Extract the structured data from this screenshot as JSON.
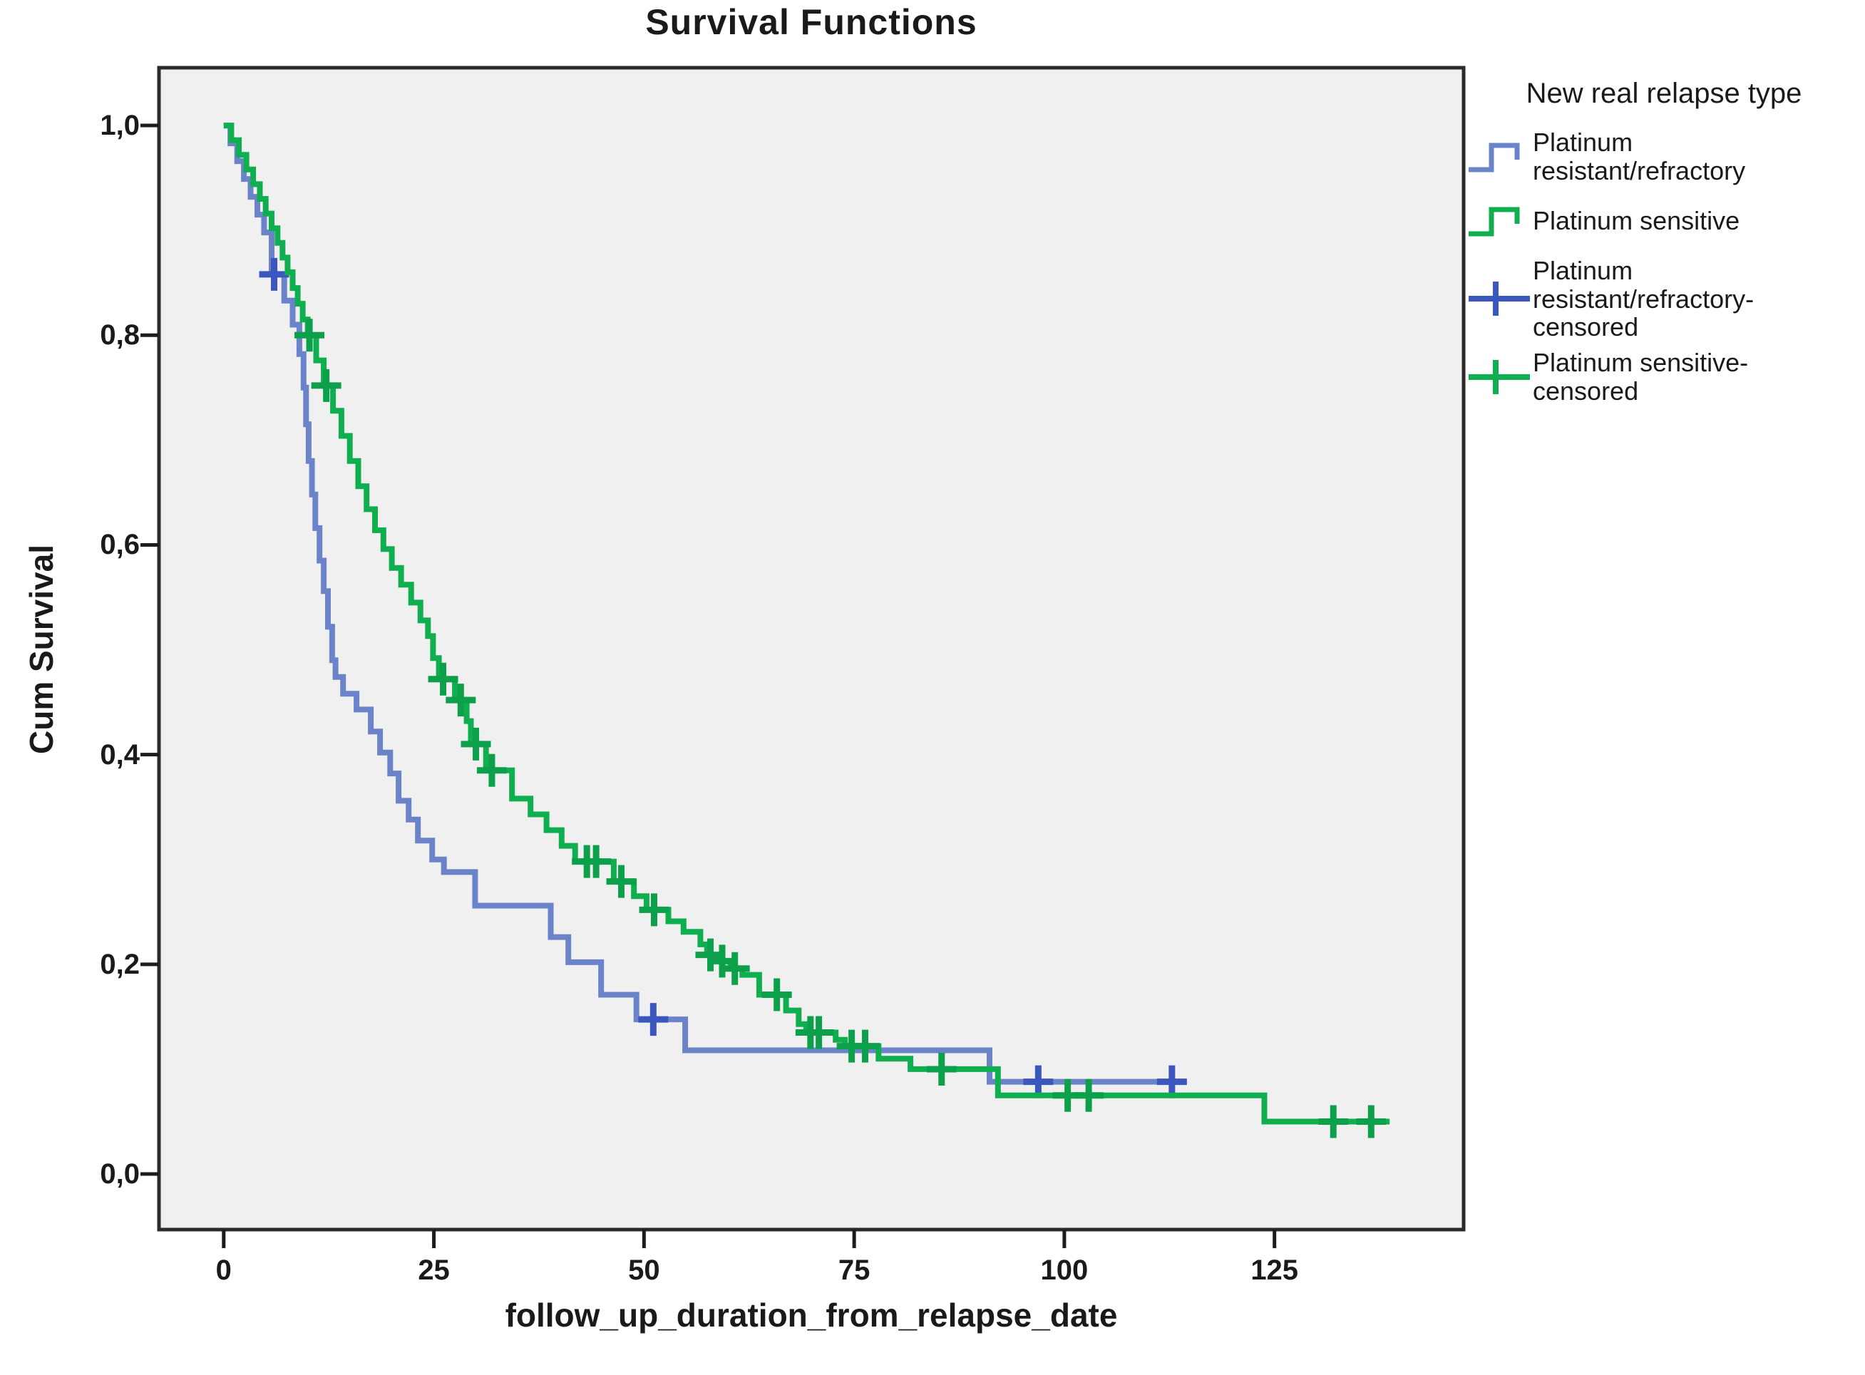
{
  "title": "Survival Functions",
  "x_axis": {
    "label": "follow_up_duration_from_relapse_date",
    "tick_labels": [
      "0",
      "25",
      "50",
      "75",
      "100",
      "125"
    ],
    "tick_values": [
      0,
      25,
      50,
      75,
      100,
      125
    ]
  },
  "y_axis": {
    "label": "Cum Survival",
    "tick_labels": [
      "0,0",
      "0,2",
      "0,4",
      "0,6",
      "0,8",
      "1,0"
    ],
    "tick_values": [
      0,
      0.2,
      0.4,
      0.6,
      0.8,
      1.0
    ]
  },
  "legend": {
    "title": "New real relapse type",
    "items": [
      {
        "label": "Platinum resistant/refractory",
        "swatch": "step",
        "color": "#6b84c9"
      },
      {
        "label": "Platinum sensitive",
        "swatch": "step",
        "color": "#0fae4e"
      },
      {
        "label": "Platinum resistant/refractory-censored",
        "swatch": "censor",
        "color": "#3a57be"
      },
      {
        "label": "Platinum sensitive-censored",
        "swatch": "censor",
        "color": "#0fae4e"
      }
    ]
  },
  "colors": {
    "plot_background": "#f0f0f0",
    "frame": "#2b2b2b",
    "tick": "#1c1c1c"
  },
  "chart_data": {
    "type": "line",
    "subtype": "kaplan_meier_step",
    "title": "Survival Functions",
    "xlabel": "follow_up_duration_from_relapse_date",
    "ylabel": "Cum Survival",
    "x_range": [
      -7.7,
      147.5
    ],
    "y_range": [
      -0.053,
      1.0551
    ],
    "x_ticks": [
      0,
      25,
      50,
      75,
      100,
      125
    ],
    "y_ticks": [
      0,
      0.2,
      0.4,
      0.6,
      0.8,
      1.0
    ],
    "grid": false,
    "legend_position": "top-right",
    "series": [
      {
        "name": "Platinum resistant/refractory",
        "color": "#6b84c9",
        "censor_color": "#3a57be",
        "end_x": 113.5,
        "points": [
          [
            0,
            1.0
          ],
          [
            0.8,
            0.983
          ],
          [
            1.6,
            0.966
          ],
          [
            2.4,
            0.949
          ],
          [
            3.2,
            0.932
          ],
          [
            4.0,
            0.915
          ],
          [
            4.8,
            0.898
          ],
          [
            5.7,
            0.858
          ],
          [
            7.2,
            0.833
          ],
          [
            8.2,
            0.81
          ],
          [
            9.0,
            0.782
          ],
          [
            9.5,
            0.75
          ],
          [
            9.8,
            0.715
          ],
          [
            10.1,
            0.68
          ],
          [
            10.5,
            0.648
          ],
          [
            10.9,
            0.616
          ],
          [
            11.4,
            0.585
          ],
          [
            11.9,
            0.556
          ],
          [
            12.4,
            0.522
          ],
          [
            12.9,
            0.49
          ],
          [
            13.3,
            0.474
          ],
          [
            14.2,
            0.458
          ],
          [
            15.8,
            0.443
          ],
          [
            17.5,
            0.422
          ],
          [
            18.6,
            0.402
          ],
          [
            19.8,
            0.382
          ],
          [
            20.8,
            0.356
          ],
          [
            22.0,
            0.338
          ],
          [
            23.1,
            0.318
          ],
          [
            24.8,
            0.3
          ],
          [
            26.2,
            0.288
          ],
          [
            29.9,
            0.256
          ],
          [
            38.9,
            0.226
          ],
          [
            41.0,
            0.202
          ],
          [
            44.9,
            0.171
          ],
          [
            49.1,
            0.1475
          ],
          [
            54.9,
            0.118
          ],
          [
            91.1,
            0.088
          ]
        ],
        "censored": [
          [
            6.0,
            0.858
          ],
          [
            51.1,
            0.1475
          ],
          [
            96.9,
            0.088
          ],
          [
            112.8,
            0.088
          ]
        ]
      },
      {
        "name": "Platinum sensitive",
        "color": "#0fae4e",
        "censor_color": "#0da04a",
        "end_x": 138.7,
        "points": [
          [
            0,
            1.0
          ],
          [
            0.9,
            0.986
          ],
          [
            1.8,
            0.972
          ],
          [
            2.7,
            0.958
          ],
          [
            3.5,
            0.944
          ],
          [
            4.3,
            0.93
          ],
          [
            5.0,
            0.916
          ],
          [
            5.7,
            0.902
          ],
          [
            6.4,
            0.888
          ],
          [
            7.0,
            0.874
          ],
          [
            7.6,
            0.86
          ],
          [
            8.2,
            0.845
          ],
          [
            8.8,
            0.83
          ],
          [
            9.4,
            0.815
          ],
          [
            10.0,
            0.8
          ],
          [
            11.0,
            0.776
          ],
          [
            11.9,
            0.752
          ],
          [
            13.0,
            0.728
          ],
          [
            14.0,
            0.704
          ],
          [
            15.0,
            0.68
          ],
          [
            16.0,
            0.656
          ],
          [
            17.0,
            0.634
          ],
          [
            18.0,
            0.614
          ],
          [
            19.0,
            0.596
          ],
          [
            20.0,
            0.578
          ],
          [
            21.1,
            0.562
          ],
          [
            22.3,
            0.545
          ],
          [
            23.4,
            0.528
          ],
          [
            24.3,
            0.513
          ],
          [
            24.9,
            0.492
          ],
          [
            25.6,
            0.472
          ],
          [
            27.5,
            0.452
          ],
          [
            28.9,
            0.432
          ],
          [
            29.4,
            0.41
          ],
          [
            31.2,
            0.385
          ],
          [
            34.3,
            0.358
          ],
          [
            36.5,
            0.343
          ],
          [
            38.4,
            0.328
          ],
          [
            40.2,
            0.313
          ],
          [
            41.8,
            0.298
          ],
          [
            46.4,
            0.279
          ],
          [
            48.8,
            0.265
          ],
          [
            50.3,
            0.252
          ],
          [
            52.9,
            0.241
          ],
          [
            54.7,
            0.231
          ],
          [
            56.7,
            0.219
          ],
          [
            57.5,
            0.209
          ],
          [
            58.9,
            0.203
          ],
          [
            60.3,
            0.196
          ],
          [
            61.7,
            0.19
          ],
          [
            63.7,
            0.171
          ],
          [
            66.9,
            0.156
          ],
          [
            68.4,
            0.143
          ],
          [
            69.3,
            0.135
          ],
          [
            72.8,
            0.128
          ],
          [
            73.9,
            0.122
          ],
          [
            77.9,
            0.11
          ],
          [
            81.7,
            0.1
          ],
          [
            92.1,
            0.075
          ],
          [
            123.8,
            0.05
          ]
        ],
        "censored": [
          [
            10.2,
            0.8
          ],
          [
            12.2,
            0.752
          ],
          [
            26.1,
            0.472
          ],
          [
            28.2,
            0.452
          ],
          [
            30.0,
            0.41
          ],
          [
            31.9,
            0.385
          ],
          [
            43.2,
            0.298
          ],
          [
            44.3,
            0.298
          ],
          [
            47.3,
            0.279
          ],
          [
            51.2,
            0.252
          ],
          [
            57.9,
            0.209
          ],
          [
            59.3,
            0.203
          ],
          [
            60.8,
            0.196
          ],
          [
            65.8,
            0.171
          ],
          [
            69.8,
            0.135
          ],
          [
            70.8,
            0.135
          ],
          [
            74.7,
            0.122
          ],
          [
            76.3,
            0.122
          ],
          [
            85.4,
            0.1
          ],
          [
            100.4,
            0.075
          ],
          [
            102.9,
            0.075
          ],
          [
            132.0,
            0.05
          ],
          [
            136.5,
            0.05
          ]
        ]
      }
    ]
  }
}
